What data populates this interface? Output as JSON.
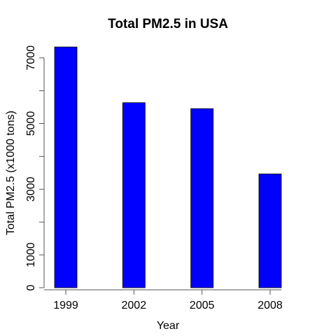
{
  "chart_data": {
    "type": "bar",
    "title": "Total PM2.5 in USA",
    "xlabel": "Year",
    "ylabel": "Total PM2.5 (x1000 tons)",
    "categories": [
      "1999",
      "2002",
      "2005",
      "2008"
    ],
    "values": [
      7332,
      5636,
      5454,
      3465
    ],
    "ylim": [
      0,
      7400
    ],
    "yticks": [
      0,
      1000,
      2000,
      3000,
      4000,
      5000,
      6000,
      7000
    ],
    "ytick_labels": [
      "0",
      "1000",
      "",
      "3000",
      "",
      "5000",
      "",
      "7000"
    ],
    "grid": false,
    "legend": "none",
    "bar_color": "#0000ff",
    "bar_border_color": "#000000",
    "axis_color": "#555555"
  }
}
